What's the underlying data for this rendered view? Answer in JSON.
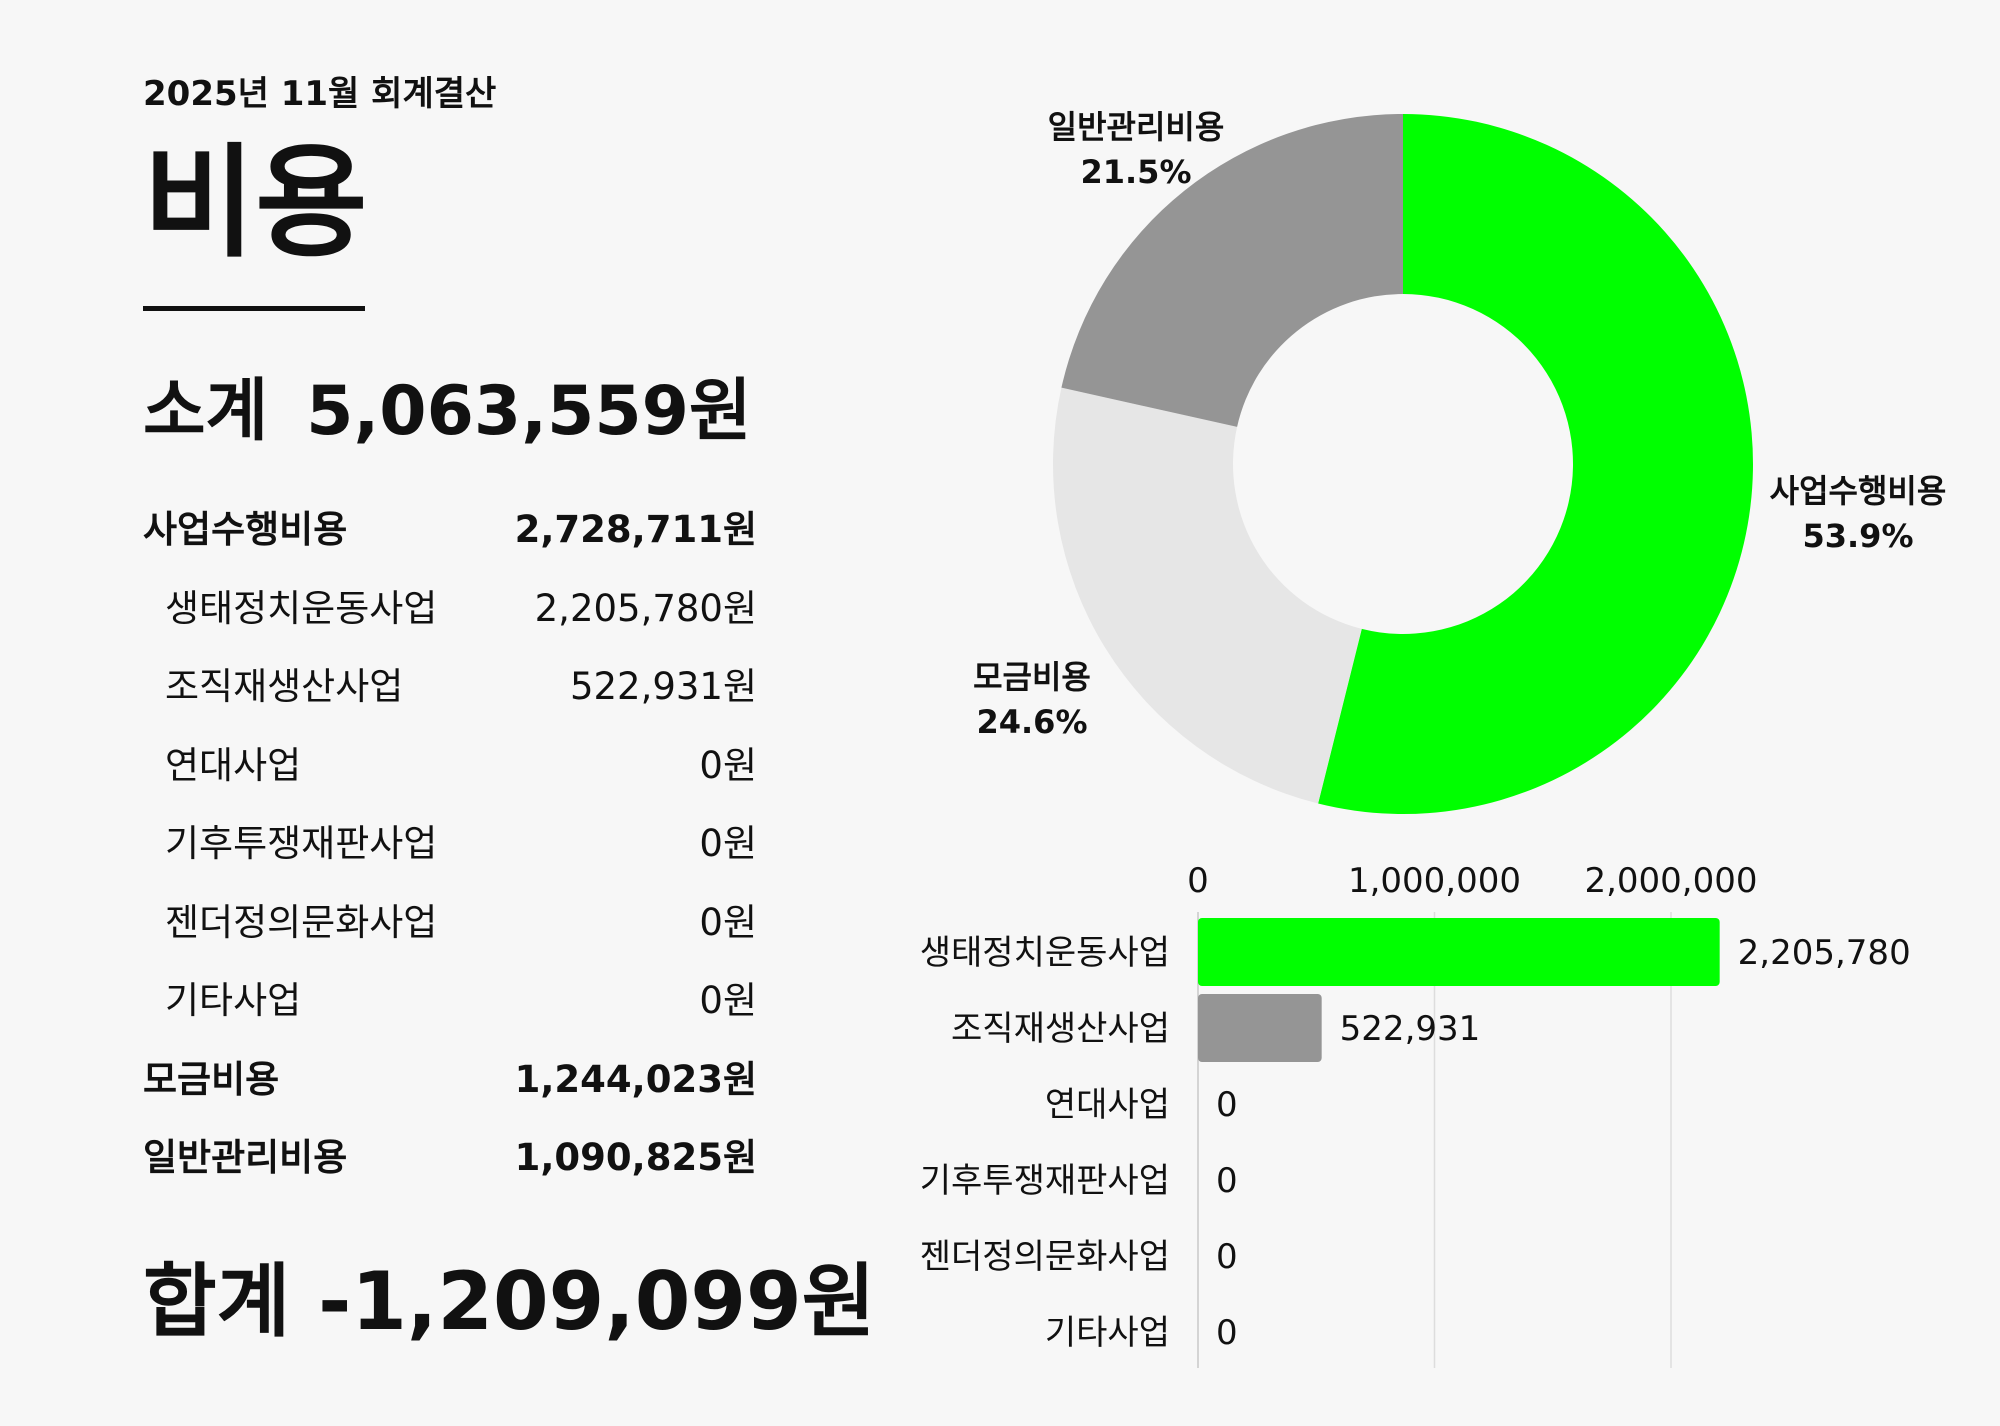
{
  "header": {
    "subtitle": "2025년 11월 회계결산",
    "title": "비용"
  },
  "summary": {
    "subtotal_label": "소계",
    "subtotal_amount": "5,063,559원",
    "total_label": "합계",
    "total_amount": "-1,209,099원"
  },
  "items": [
    {
      "label": "사업수행비용",
      "value": "2,728,711원",
      "level": "main"
    },
    {
      "label": "생태정치운동사업",
      "value": "2,205,780원",
      "level": "sub"
    },
    {
      "label": "조직재생산사업",
      "value": "522,931원",
      "level": "sub"
    },
    {
      "label": "연대사업",
      "value": "0원",
      "level": "sub"
    },
    {
      "label": "기후투쟁재판사업",
      "value": "0원",
      "level": "sub"
    },
    {
      "label": "젠더정의문화사업",
      "value": "0원",
      "level": "sub"
    },
    {
      "label": "기타사업",
      "value": "0원",
      "level": "sub"
    },
    {
      "label": "모금비용",
      "value": "1,244,023원",
      "level": "main"
    },
    {
      "label": "일반관리비용",
      "value": "1,090,825원",
      "level": "main"
    }
  ],
  "colors": {
    "accent_green": "#00ff00",
    "gray": "#959595",
    "light_gray": "#e6e6e6",
    "background": "#f7f7f7",
    "text": "#111111"
  },
  "chart_data": [
    {
      "type": "pie",
      "donut": true,
      "slices": [
        {
          "name": "사업수행비용",
          "value": 53.9,
          "label": "53.9%",
          "color": "#00ff00"
        },
        {
          "name": "모금비용",
          "value": 24.6,
          "label": "24.6%",
          "color": "#e6e6e6"
        },
        {
          "name": "일반관리비용",
          "value": 21.5,
          "label": "21.5%",
          "color": "#959595"
        }
      ]
    },
    {
      "type": "bar",
      "orientation": "horizontal",
      "categories": [
        "생태정치운동사업",
        "조직재생산사업",
        "연대사업",
        "기후투쟁재판사업",
        "젠더정의문화사업",
        "기타사업"
      ],
      "values": [
        2205780,
        522931,
        0,
        0,
        0,
        0
      ],
      "value_labels": [
        "2,205,780",
        "522,931",
        "0",
        "0",
        "0",
        "0"
      ],
      "colors": [
        "#00ff00",
        "#959595",
        "#959595",
        "#959595",
        "#959595",
        "#959595"
      ],
      "xlim": [
        0,
        2200000
      ],
      "xticks": [
        0,
        1000000,
        2000000
      ],
      "xtick_labels": [
        "0",
        "1,000,000",
        "2,000,000"
      ],
      "grid": true,
      "axis_position": "top"
    }
  ]
}
